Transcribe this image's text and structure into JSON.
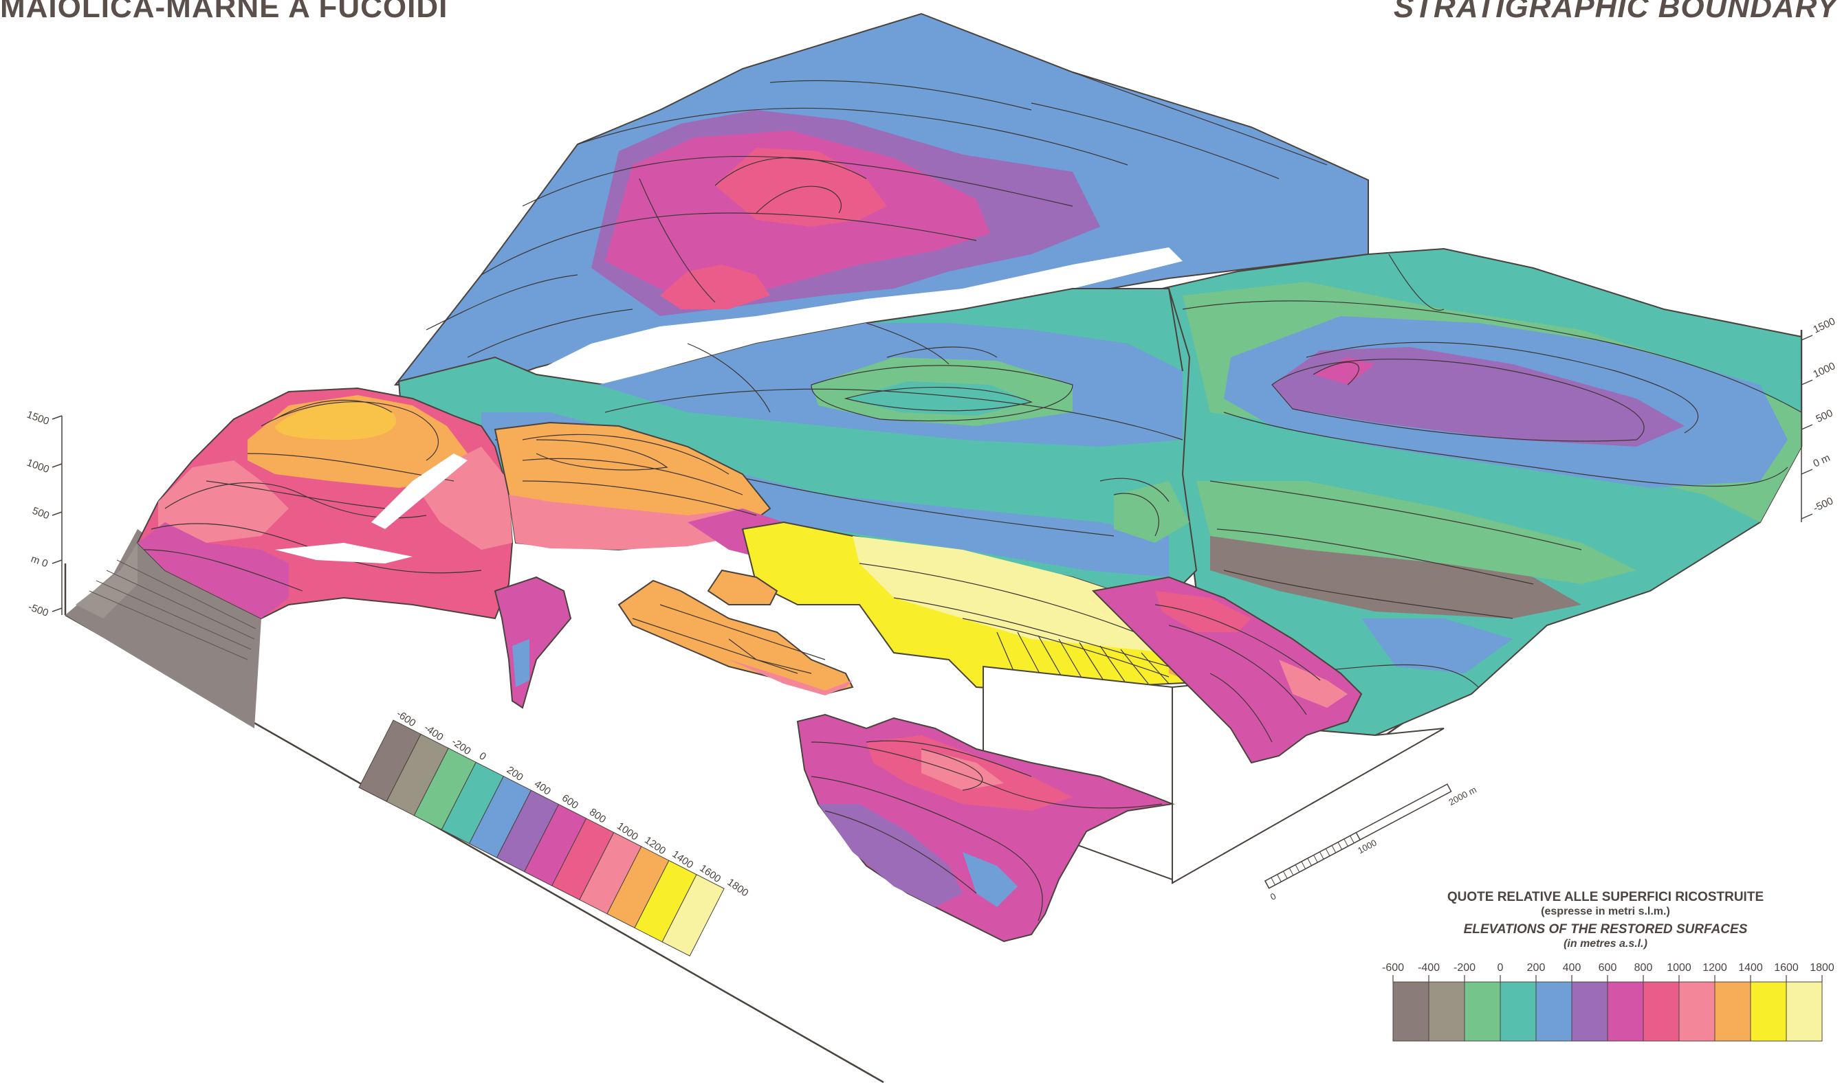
{
  "header": {
    "title_left": "MAIOLICA-MARNE A FUCOIDI",
    "title_right": "STRATIGRAPHIC BOUNDARY"
  },
  "legend": {
    "title_it": "QUOTE RELATIVE ALLE SUPERFICI RICOSTRUITE",
    "subtitle_it": "(espresse in metri s.l.m.)",
    "title_en": "ELEVATIONS OF THE RESTORED SURFACES",
    "subtitle_en": "(in metres a.s.l.)",
    "ticks": [
      "-600",
      "-400",
      "-200",
      "0",
      "200",
      "400",
      "600",
      "800",
      "1000",
      "1200",
      "1400",
      "1600",
      "1800"
    ],
    "colors": [
      "#8a7c78",
      "#9a9484",
      "#74c48c",
      "#56bfae",
      "#6f9fd6",
      "#9c6cb8",
      "#d455a8",
      "#ea5d8a",
      "#f4869a",
      "#f7ac58",
      "#f8ef2a",
      "#f8f3a0"
    ]
  },
  "scale_bars": {
    "left_ticks": [
      "1500",
      "1000",
      "500",
      "m 0",
      "-500"
    ],
    "right_ticks": [
      "1500",
      "1000",
      "500",
      "0 m",
      "-500"
    ]
  },
  "distance_scale": {
    "labels": [
      "0",
      "1000",
      "2000 m"
    ]
  }
}
